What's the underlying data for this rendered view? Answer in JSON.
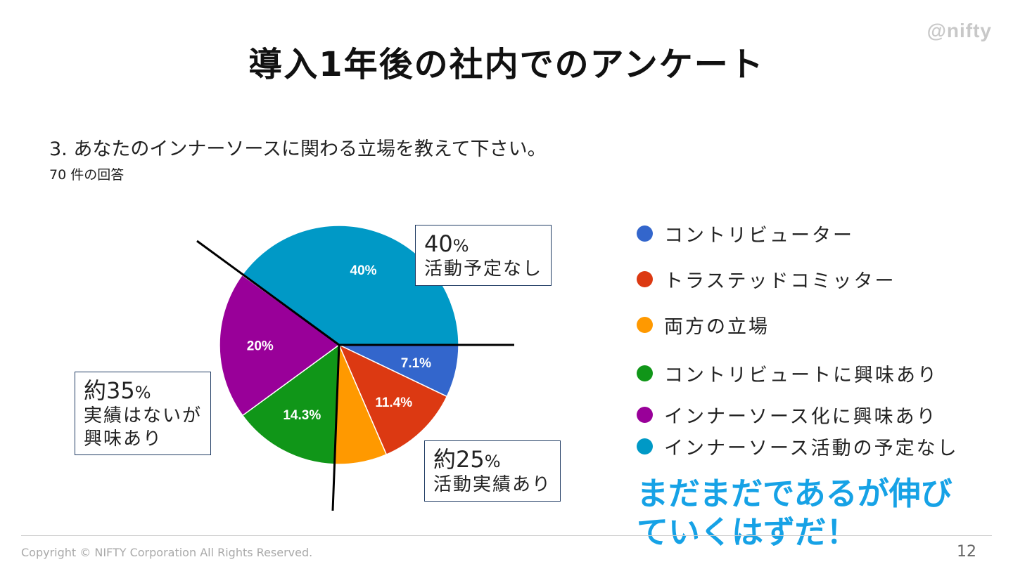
{
  "logo": "@nifty",
  "title": "導入1年後の社内でのアンケート",
  "question": "3. あなたのインナーソースに関わる立場を教えて下さい。",
  "response_count": "70 件の回答",
  "colors": {
    "blue": "#3366cc",
    "red": "#dc3912",
    "orange": "#ff9900",
    "green": "#109618",
    "purple": "#990099",
    "cyan": "#0099c6",
    "accent": "#16a2e6"
  },
  "chart_data": {
    "type": "pie",
    "title": "3. あなたのインナーソースに関わる立場を教えて下さい。",
    "categories": [
      "コントリビューター",
      "トラステッドコミッター",
      "両方の立場",
      "コントリビュートに興味あり",
      "インナーソース化に興味あり",
      "インナーソース活動の予定なし"
    ],
    "values": [
      7.1,
      11.4,
      7.1,
      14.3,
      20,
      40
    ],
    "labels": [
      "7.1%",
      "11.4%",
      "",
      "14.3%",
      "20%",
      "40%"
    ],
    "colors": [
      "#3366cc",
      "#dc3912",
      "#ff9900",
      "#109618",
      "#990099",
      "#0099c6"
    ],
    "legend_position": "right"
  },
  "callouts": {
    "none": {
      "value": "40",
      "unit": "%",
      "text": "活動予定なし"
    },
    "interest": {
      "value": "約35",
      "unit": "%",
      "line1": "実績はないが",
      "line2": "興味あり"
    },
    "active": {
      "value": "約25",
      "unit": "%",
      "text": "活動実績あり"
    }
  },
  "legend": [
    {
      "label": "コントリビューター",
      "color": "#3366cc"
    },
    {
      "label": "トラステッドコミッター",
      "color": "#dc3912"
    },
    {
      "label": "両方の立場",
      "color": "#ff9900"
    },
    {
      "label": "コントリビュートに興味あり",
      "color": "#109618"
    },
    {
      "label": "インナーソース化に興味あり",
      "color": "#990099"
    },
    {
      "label": "インナーソース活動の予定なし",
      "color": "#0099c6"
    }
  ],
  "emphasis": "まだまだであるが伸びていくはずだ！",
  "footer": {
    "copyright": "Copyright © NIFTY Corporation All Rights Reserved.",
    "page": "12"
  }
}
